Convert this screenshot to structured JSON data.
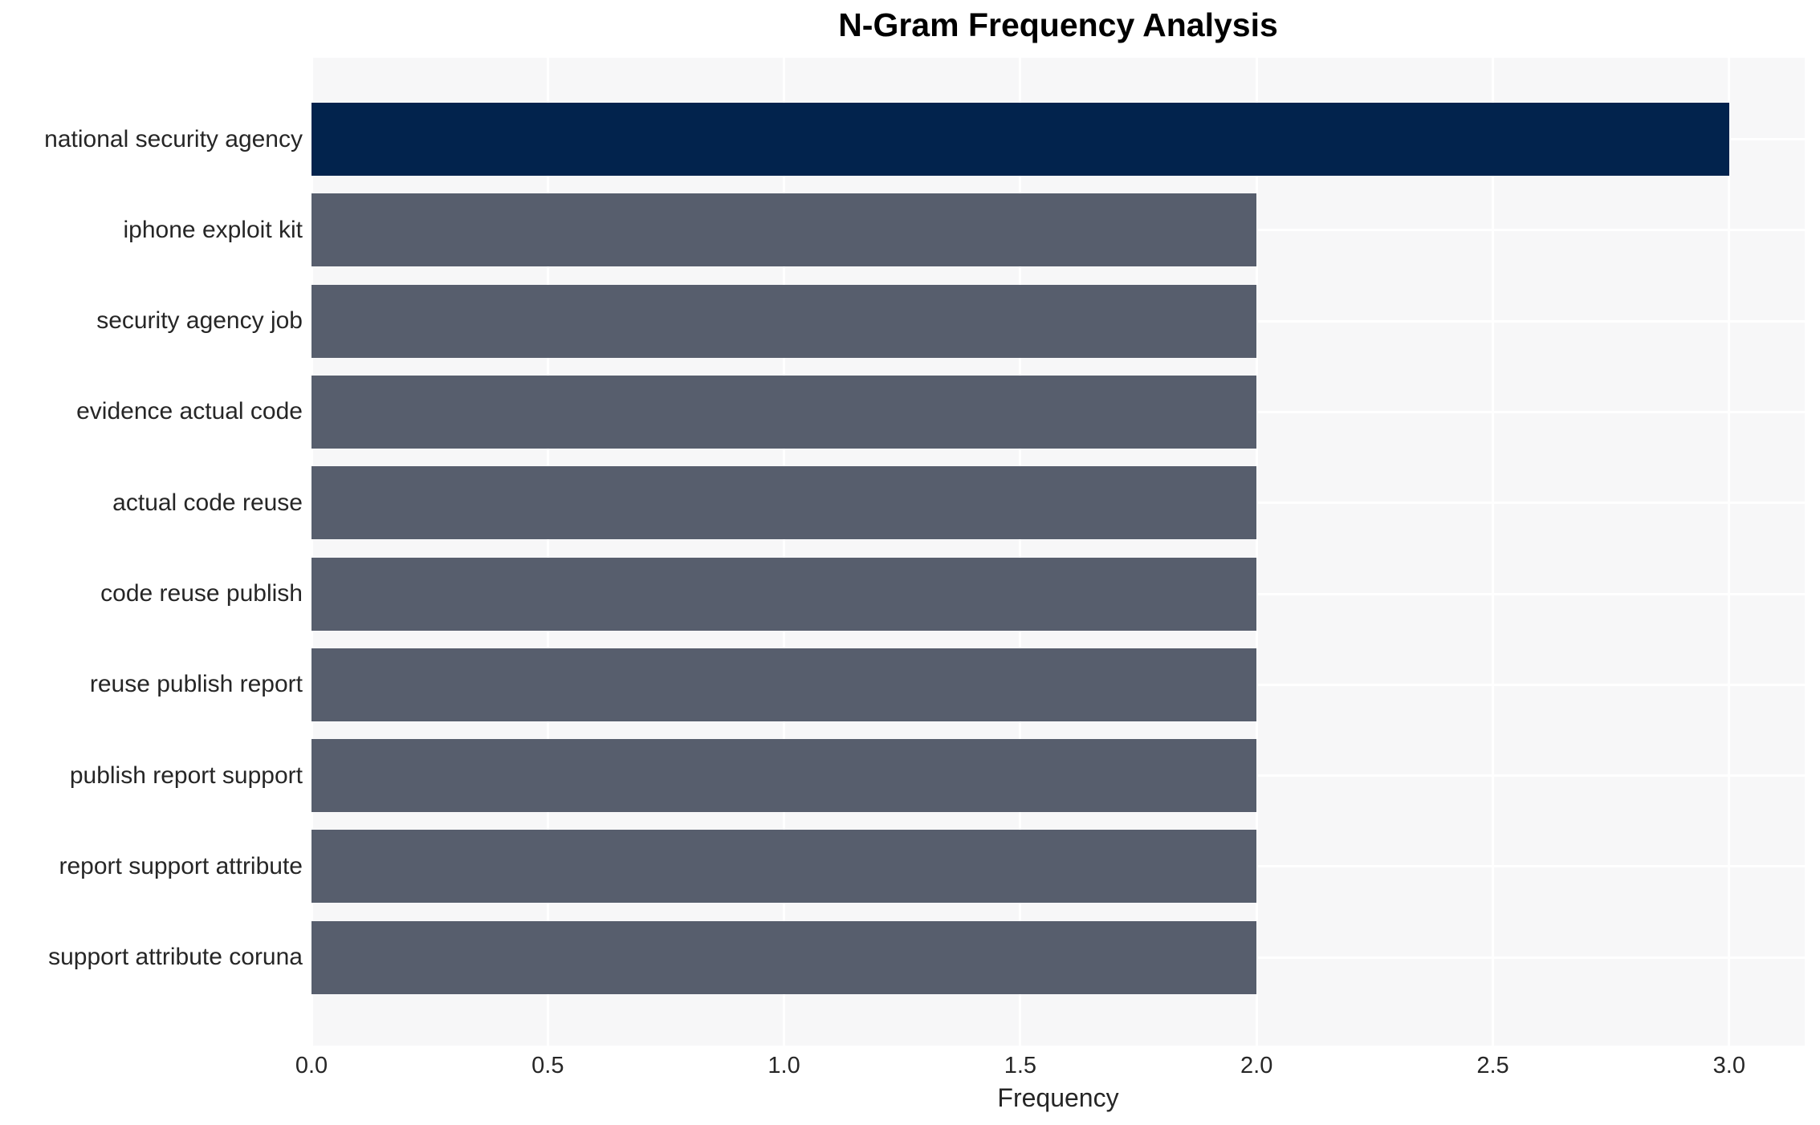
{
  "chart_data": {
    "type": "bar",
    "orientation": "horizontal",
    "title": "N-Gram Frequency Analysis",
    "xlabel": "Frequency",
    "ylabel": "",
    "categories": [
      "national security agency",
      "iphone exploit kit",
      "security agency job",
      "evidence actual code",
      "actual code reuse",
      "code reuse publish",
      "reuse publish report",
      "publish report support",
      "report support attribute",
      "support attribute coruna"
    ],
    "values": [
      3,
      2,
      2,
      2,
      2,
      2,
      2,
      2,
      2,
      2
    ],
    "bar_colors": [
      "#02234D",
      "#575E6D",
      "#575E6D",
      "#575E6D",
      "#575E6D",
      "#575E6D",
      "#575E6D",
      "#575E6D",
      "#575E6D",
      "#575E6D"
    ],
    "xlim": [
      0,
      3.16
    ],
    "xtick_values": [
      0,
      0.5,
      1,
      1.5,
      2,
      2.5,
      3
    ],
    "xtick_labels": [
      "0.0",
      "0.5",
      "1.0",
      "1.5",
      "2.0",
      "2.5",
      "3.0"
    ],
    "grid": true,
    "legend": false,
    "colors": {
      "highlight_bar": "#02234D",
      "default_bar": "#575E6D",
      "plot_background": "#F7F7F8",
      "gridline": "#FFFFFF",
      "axis_text": "#262626",
      "title_text": "#000000"
    }
  }
}
